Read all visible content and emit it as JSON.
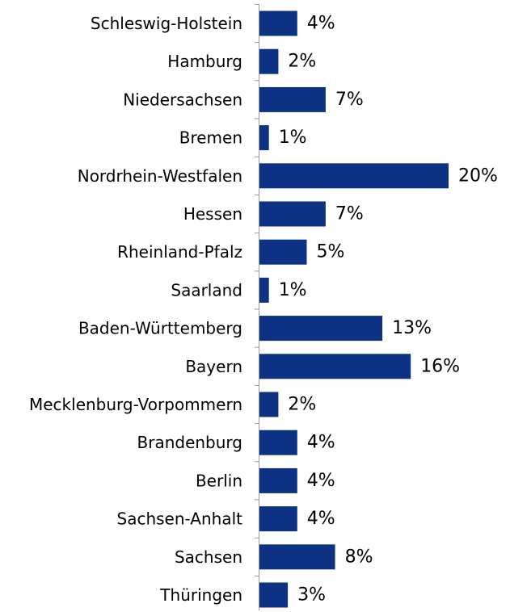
{
  "chart_data": {
    "type": "bar",
    "orientation": "horizontal",
    "categories": [
      "Schleswig-Holstein",
      "Hamburg",
      "Niedersachsen",
      "Bremen",
      "Nordrhein-Westfalen",
      "Hessen",
      "Rheinland-Pfalz",
      "Saarland",
      "Baden-Württemberg",
      "Bayern",
      "Mecklenburg-Vorpommern",
      "Brandenburg",
      "Berlin",
      "Sachsen-Anhalt",
      "Sachsen",
      "Thüringen"
    ],
    "values": [
      4,
      2,
      7,
      1,
      20,
      7,
      5,
      1,
      13,
      16,
      2,
      4,
      4,
      4,
      8,
      3
    ],
    "value_labels": [
      "4%",
      "2%",
      "7%",
      "1%",
      "20%",
      "7%",
      "5%",
      "1%",
      "13%",
      "16%",
      "2%",
      "4%",
      "4%",
      "4%",
      "8%",
      "3%"
    ],
    "unit": "%",
    "title": "",
    "xlabel": "",
    "ylabel": "",
    "xlim": [
      0,
      20
    ],
    "grid": false,
    "legend": "none",
    "bar_color": "#0e3283",
    "axis_color": "#9a9a9a"
  }
}
